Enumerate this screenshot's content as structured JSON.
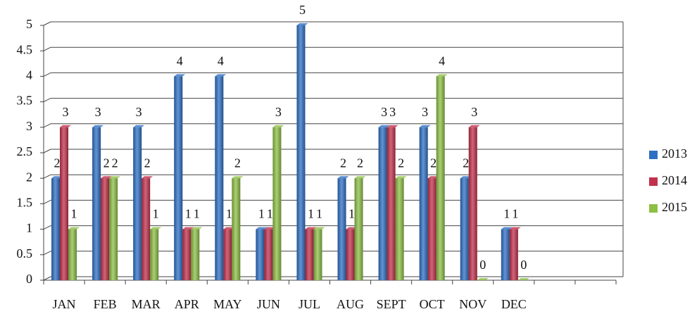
{
  "chart_data": {
    "type": "bar",
    "categories": [
      "JAN",
      "FEB",
      "MAR",
      "APR",
      "MAY",
      "JUN",
      "JUL",
      "AUG",
      "SEPT",
      "OCT",
      "NOV",
      "DEC",
      null,
      null
    ],
    "series": [
      {
        "name": "2013",
        "color": "#2e6fc4",
        "values": [
          2,
          3,
          3,
          4,
          4,
          1,
          5,
          2,
          3,
          3,
          2,
          1,
          null,
          null
        ]
      },
      {
        "name": "2014",
        "color": "#c2304b",
        "values": [
          3,
          2,
          2,
          1,
          1,
          1,
          1,
          1,
          3,
          2,
          3,
          1,
          null,
          null
        ]
      },
      {
        "name": "2015",
        "color": "#8dbf45",
        "values": [
          1,
          2,
          1,
          1,
          2,
          3,
          1,
          2,
          2,
          4,
          0,
          0,
          null,
          null
        ]
      }
    ],
    "ylim": [
      0,
      5
    ],
    "yticks": [
      0,
      0.5,
      1,
      1.5,
      2,
      2.5,
      3,
      3.5,
      4,
      4.5,
      5
    ],
    "grid": true,
    "legend": "right"
  }
}
